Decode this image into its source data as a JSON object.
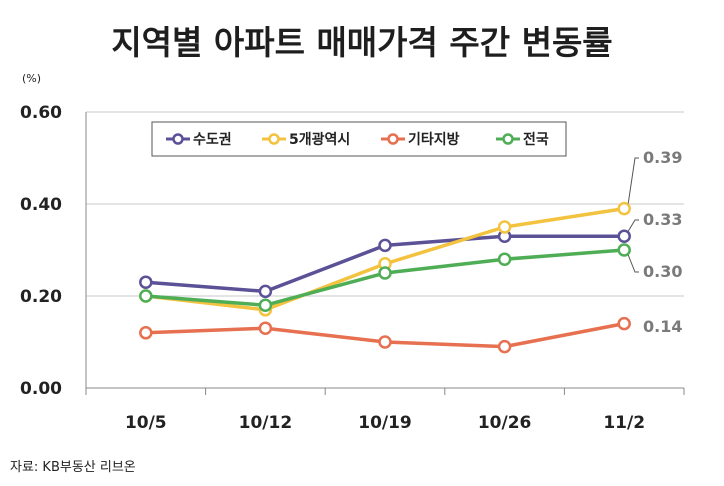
{
  "title": "지역별 아파트 매매가격 주간 변동률",
  "source": "자료: KB부동산 리브온",
  "chart_data": {
    "type": "line",
    "unit": "(%)",
    "categories": [
      "10/5",
      "10/12",
      "10/19",
      "10/26",
      "11/2"
    ],
    "ylim": [
      0,
      0.6
    ],
    "yticks": [
      "0.00",
      "0.20",
      "0.40",
      "0.60"
    ],
    "grid": "horizontal",
    "legend_position": "top-center",
    "series": [
      {
        "name": "수도권",
        "color": "#5b5196",
        "values": [
          0.23,
          0.21,
          0.31,
          0.33,
          0.33
        ]
      },
      {
        "name": "5개광역시",
        "color": "#f3c23e",
        "values": [
          0.2,
          0.17,
          0.27,
          0.35,
          0.39
        ]
      },
      {
        "name": "기타지방",
        "color": "#e6704f",
        "values": [
          0.12,
          0.13,
          0.1,
          0.09,
          0.14
        ]
      },
      {
        "name": "전국",
        "color": "#4fae55",
        "values": [
          0.2,
          0.18,
          0.25,
          0.28,
          0.3
        ]
      }
    ],
    "end_labels": [
      {
        "series": "5개광역시",
        "text": "0.39"
      },
      {
        "series": "수도권",
        "text": "0.33"
      },
      {
        "series": "전국",
        "text": "0.30"
      },
      {
        "series": "기타지방",
        "text": "0.14"
      }
    ]
  }
}
